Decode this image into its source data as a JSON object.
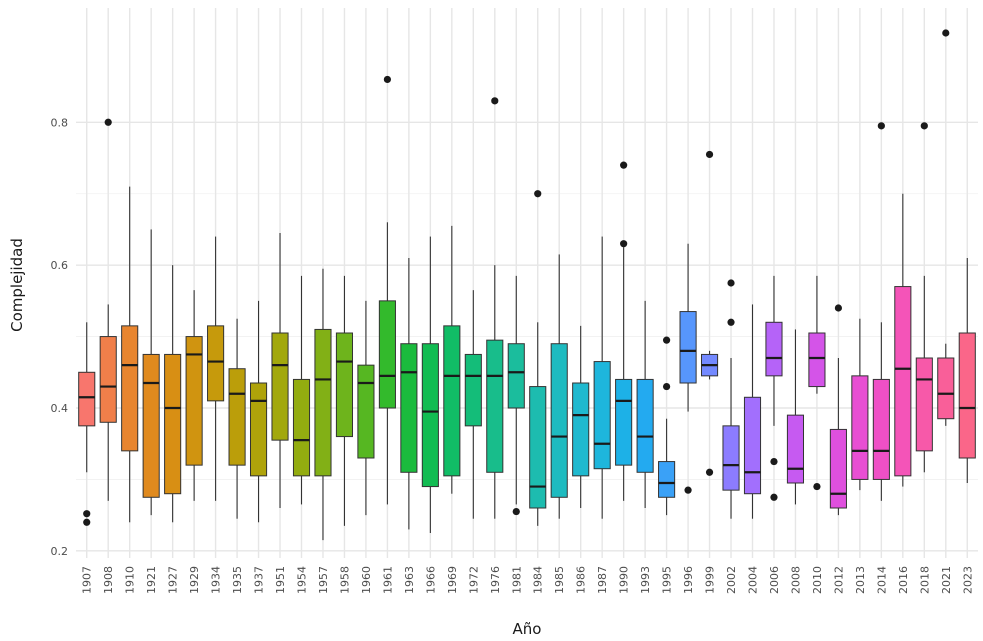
{
  "chart_data": {
    "type": "boxplot",
    "title": "",
    "xlabel": "Año",
    "ylabel": "Complejidad",
    "ylim": [
      0.19,
      0.96
    ],
    "yticks": [
      0.2,
      0.4,
      0.6,
      0.8
    ],
    "ytick_labels": [
      "0.2",
      "0.4",
      "0.6",
      "0.8"
    ],
    "grid": true,
    "legend": "none",
    "categories": [
      "1907",
      "1908",
      "1910",
      "1921",
      "1927",
      "1929",
      "1934",
      "1935",
      "1937",
      "1951",
      "1954",
      "1957",
      "1958",
      "1960",
      "1961",
      "1963",
      "1966",
      "1969",
      "1972",
      "1976",
      "1981",
      "1984",
      "1985",
      "1986",
      "1987",
      "1990",
      "1993",
      "1995",
      "1996",
      "1999",
      "2002",
      "2004",
      "2006",
      "2008",
      "2010",
      "2012",
      "2013",
      "2014",
      "2016",
      "2018",
      "2021",
      "2023"
    ],
    "boxes": [
      {
        "category": "1907",
        "color": "#F8766D",
        "min": 0.31,
        "q1": 0.375,
        "median": 0.415,
        "q3": 0.45,
        "max": 0.52,
        "outliers": [
          0.24,
          0.252
        ]
      },
      {
        "category": "1908",
        "color": "#F07F4A",
        "min": 0.27,
        "q1": 0.38,
        "median": 0.43,
        "q3": 0.5,
        "max": 0.545,
        "outliers": [
          0.8
        ]
      },
      {
        "category": "1910",
        "color": "#E8852F",
        "min": 0.24,
        "q1": 0.34,
        "median": 0.46,
        "q3": 0.515,
        "max": 0.71,
        "outliers": []
      },
      {
        "category": "1921",
        "color": "#E08A1E",
        "min": 0.25,
        "q1": 0.275,
        "median": 0.435,
        "q3": 0.475,
        "max": 0.65,
        "outliers": []
      },
      {
        "category": "1927",
        "color": "#D88F14",
        "min": 0.24,
        "q1": 0.28,
        "median": 0.4,
        "q3": 0.475,
        "max": 0.6,
        "outliers": []
      },
      {
        "category": "1929",
        "color": "#D09410",
        "min": 0.27,
        "q1": 0.32,
        "median": 0.475,
        "q3": 0.5,
        "max": 0.565,
        "outliers": []
      },
      {
        "category": "1934",
        "color": "#C69A0C",
        "min": 0.27,
        "q1": 0.41,
        "median": 0.465,
        "q3": 0.515,
        "max": 0.64,
        "outliers": []
      },
      {
        "category": "1935",
        "color": "#BB9E0A",
        "min": 0.245,
        "q1": 0.32,
        "median": 0.42,
        "q3": 0.455,
        "max": 0.525,
        "outliers": []
      },
      {
        "category": "1937",
        "color": "#AFA30A",
        "min": 0.24,
        "q1": 0.305,
        "median": 0.41,
        "q3": 0.435,
        "max": 0.55,
        "outliers": []
      },
      {
        "category": "1951",
        "color": "#A2A80C",
        "min": 0.26,
        "q1": 0.355,
        "median": 0.46,
        "q3": 0.505,
        "max": 0.645,
        "outliers": []
      },
      {
        "category": "1954",
        "color": "#93AC10",
        "min": 0.265,
        "q1": 0.305,
        "median": 0.355,
        "q3": 0.44,
        "max": 0.585,
        "outliers": []
      },
      {
        "category": "1957",
        "color": "#82B016",
        "min": 0.215,
        "q1": 0.305,
        "median": 0.44,
        "q3": 0.51,
        "max": 0.595,
        "outliers": []
      },
      {
        "category": "1958",
        "color": "#6EB41C",
        "min": 0.235,
        "q1": 0.36,
        "median": 0.465,
        "q3": 0.505,
        "max": 0.585,
        "outliers": []
      },
      {
        "category": "1960",
        "color": "#56B722",
        "min": 0.25,
        "q1": 0.33,
        "median": 0.435,
        "q3": 0.46,
        "max": 0.55,
        "outliers": []
      },
      {
        "category": "1961",
        "color": "#33BA2C",
        "min": 0.265,
        "q1": 0.4,
        "median": 0.445,
        "q3": 0.55,
        "max": 0.66,
        "outliers": [
          0.86
        ]
      },
      {
        "category": "1963",
        "color": "#1BBB3D",
        "min": 0.23,
        "q1": 0.31,
        "median": 0.45,
        "q3": 0.49,
        "max": 0.61,
        "outliers": []
      },
      {
        "category": "1966",
        "color": "#12BC52",
        "min": 0.225,
        "q1": 0.29,
        "median": 0.395,
        "q3": 0.49,
        "max": 0.64,
        "outliers": []
      },
      {
        "category": "1969",
        "color": "#11BD66",
        "min": 0.28,
        "q1": 0.305,
        "median": 0.445,
        "q3": 0.515,
        "max": 0.655,
        "outliers": []
      },
      {
        "category": "1972",
        "color": "#14BD79",
        "min": 0.245,
        "q1": 0.375,
        "median": 0.445,
        "q3": 0.475,
        "max": 0.565,
        "outliers": []
      },
      {
        "category": "1976",
        "color": "#18BD8B",
        "min": 0.245,
        "q1": 0.31,
        "median": 0.445,
        "q3": 0.495,
        "max": 0.6,
        "outliers": [
          0.83
        ]
      },
      {
        "category": "1981",
        "color": "#1BBD9D",
        "min": 0.265,
        "q1": 0.4,
        "median": 0.45,
        "q3": 0.49,
        "max": 0.585,
        "outliers": [
          0.255
        ]
      },
      {
        "category": "1984",
        "color": "#1DBCAF",
        "min": 0.235,
        "q1": 0.26,
        "median": 0.29,
        "q3": 0.43,
        "max": 0.52,
        "outliers": [
          0.7
        ]
      },
      {
        "category": "1985",
        "color": "#1EBBC0",
        "min": 0.245,
        "q1": 0.275,
        "median": 0.36,
        "q3": 0.49,
        "max": 0.615,
        "outliers": []
      },
      {
        "category": "1986",
        "color": "#1FB9CF",
        "min": 0.26,
        "q1": 0.305,
        "median": 0.39,
        "q3": 0.435,
        "max": 0.515,
        "outliers": []
      },
      {
        "category": "1987",
        "color": "#1EB6DC",
        "min": 0.245,
        "q1": 0.315,
        "median": 0.35,
        "q3": 0.465,
        "max": 0.64,
        "outliers": []
      },
      {
        "category": "1990",
        "color": "#1DB1E7",
        "min": 0.27,
        "q1": 0.32,
        "median": 0.41,
        "q3": 0.44,
        "max": 0.625,
        "outliers": [
          0.63,
          0.74
        ]
      },
      {
        "category": "1993",
        "color": "#23AAF0",
        "min": 0.26,
        "q1": 0.31,
        "median": 0.36,
        "q3": 0.44,
        "max": 0.55,
        "outliers": []
      },
      {
        "category": "1995",
        "color": "#3AA1F7",
        "min": 0.25,
        "q1": 0.275,
        "median": 0.295,
        "q3": 0.325,
        "max": 0.385,
        "outliers": [
          0.43,
          0.495
        ]
      },
      {
        "category": "1996",
        "color": "#5796FC",
        "min": 0.395,
        "q1": 0.435,
        "median": 0.48,
        "q3": 0.535,
        "max": 0.63,
        "outliers": [
          0.285
        ]
      },
      {
        "category": "1999",
        "color": "#7389FF",
        "min": 0.44,
        "q1": 0.445,
        "median": 0.46,
        "q3": 0.475,
        "max": 0.48,
        "outliers": [
          0.31,
          0.755
        ]
      },
      {
        "category": "2002",
        "color": "#8C7CFF",
        "min": 0.245,
        "q1": 0.285,
        "median": 0.32,
        "q3": 0.375,
        "max": 0.47,
        "outliers": [
          0.52,
          0.575
        ]
      },
      {
        "category": "2004",
        "color": "#A26FFD",
        "min": 0.245,
        "q1": 0.28,
        "median": 0.31,
        "q3": 0.415,
        "max": 0.545,
        "outliers": []
      },
      {
        "category": "2006",
        "color": "#B563F8",
        "min": 0.375,
        "q1": 0.445,
        "median": 0.47,
        "q3": 0.52,
        "max": 0.585,
        "outliers": [
          0.275,
          0.325
        ]
      },
      {
        "category": "2008",
        "color": "#C65AF1",
        "min": 0.265,
        "q1": 0.295,
        "median": 0.315,
        "q3": 0.39,
        "max": 0.51,
        "outliers": []
      },
      {
        "category": "2010",
        "color": "#D454E8",
        "min": 0.42,
        "q1": 0.43,
        "median": 0.47,
        "q3": 0.505,
        "max": 0.585,
        "outliers": [
          0.29
        ]
      },
      {
        "category": "2012",
        "color": "#DF50DE",
        "min": 0.25,
        "q1": 0.26,
        "median": 0.28,
        "q3": 0.37,
        "max": 0.47,
        "outliers": [
          0.54
        ]
      },
      {
        "category": "2013",
        "color": "#E84FD3",
        "min": 0.285,
        "q1": 0.3,
        "median": 0.34,
        "q3": 0.445,
        "max": 0.525,
        "outliers": []
      },
      {
        "category": "2014",
        "color": "#EF50C6",
        "min": 0.27,
        "q1": 0.3,
        "median": 0.34,
        "q3": 0.44,
        "max": 0.52,
        "outliers": [
          0.795
        ]
      },
      {
        "category": "2016",
        "color": "#F454B8",
        "min": 0.29,
        "q1": 0.305,
        "median": 0.455,
        "q3": 0.57,
        "max": 0.7,
        "outliers": []
      },
      {
        "category": "2018",
        "color": "#F759A9",
        "min": 0.31,
        "q1": 0.34,
        "median": 0.44,
        "q3": 0.47,
        "max": 0.585,
        "outliers": [
          0.795
        ]
      },
      {
        "category": "2021",
        "color": "#F95F99",
        "min": 0.375,
        "q1": 0.385,
        "median": 0.42,
        "q3": 0.47,
        "max": 0.49,
        "outliers": [
          0.925
        ]
      },
      {
        "category": "2023",
        "color": "#FA6689",
        "min": 0.295,
        "q1": 0.33,
        "median": 0.4,
        "q3": 0.505,
        "max": 0.61,
        "outliers": []
      }
    ]
  }
}
